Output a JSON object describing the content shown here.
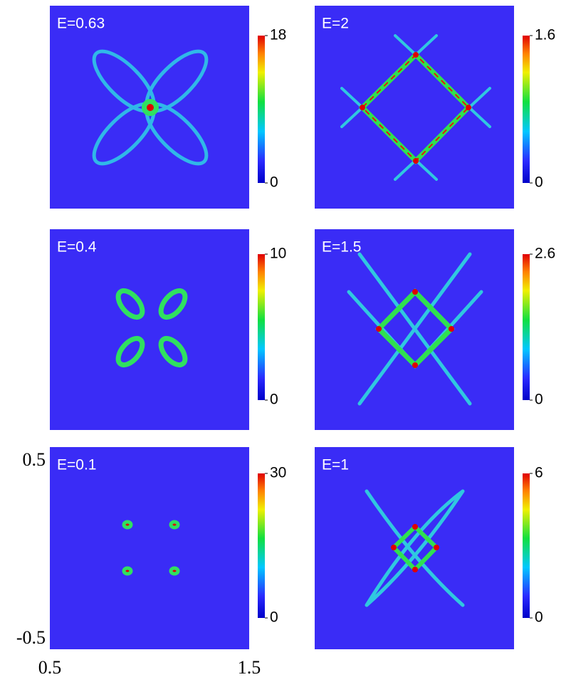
{
  "chart_data": [
    {
      "type": "heatmap",
      "title": "E=0.63",
      "zlim": [
        0,
        18
      ],
      "zticks": [
        0,
        18
      ]
    },
    {
      "type": "heatmap",
      "title": "E=2",
      "zlim": [
        0,
        1.6
      ],
      "zticks": [
        0,
        1.6
      ]
    },
    {
      "type": "heatmap",
      "title": "E=0.4",
      "zlim": [
        0,
        10
      ],
      "zticks": [
        0,
        10
      ]
    },
    {
      "type": "heatmap",
      "title": "E=1.5",
      "zlim": [
        0,
        2.6
      ],
      "zticks": [
        0,
        2.6
      ]
    },
    {
      "type": "heatmap",
      "title": "E=0.1",
      "zlim": [
        0,
        30
      ],
      "zticks": [
        0,
        30
      ],
      "xlim": [
        0.5,
        1.5
      ],
      "xticks": [
        0.5,
        1.5
      ],
      "ylim": [
        -0.5,
        0.5
      ],
      "yticks": [
        -0.5,
        0.5
      ]
    },
    {
      "type": "heatmap",
      "title": "E=1",
      "zlim": [
        0,
        6
      ],
      "zticks": [
        0,
        6
      ]
    }
  ]
}
